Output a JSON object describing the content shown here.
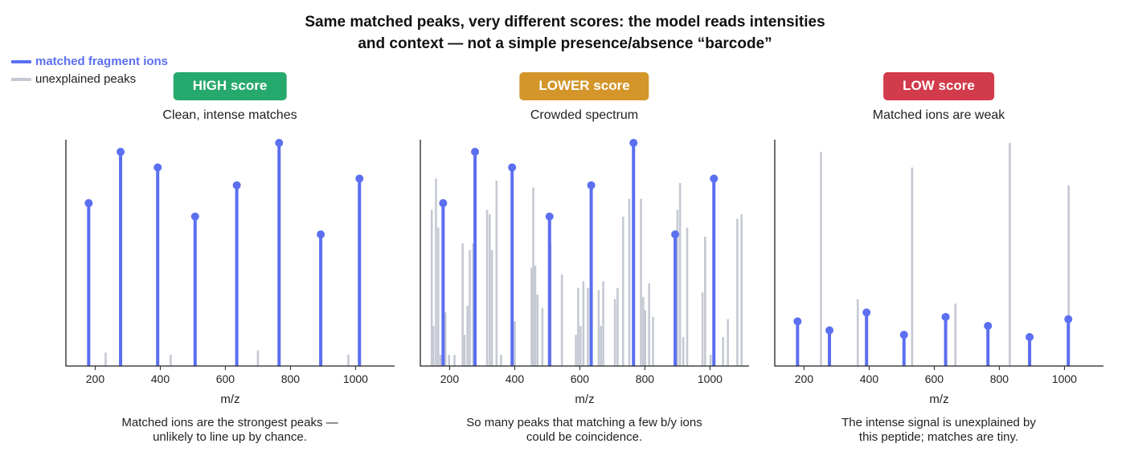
{
  "title": {
    "line1": "Same matched peaks, very different scores: the model reads intensities",
    "line2": "and context — not a simple presence/absence “barcode”"
  },
  "legend": {
    "matched_label": "matched fragment ions",
    "unexplained_label": "unexplained peaks"
  },
  "colors": {
    "matched": "#5b6ff0",
    "unexplained": "#c5c9d3",
    "high": "#26a96c",
    "lower": "#d4962a",
    "low": "#d23b4b",
    "axis": "#222222"
  },
  "chart_data": [
    {
      "type": "bar",
      "badge": "HIGH score",
      "badge_color": "#26a96c",
      "subtitle": "Clean, intense matches",
      "caption_line1": "Matched ions are the strongest peaks —",
      "caption_line2": "unlikely to line up by chance.",
      "xlabel": "m/z",
      "xlim": [
        110,
        1120
      ],
      "ylim": [
        0,
        1.0
      ],
      "xticks": [
        200,
        400,
        600,
        800,
        1000
      ],
      "matched": {
        "name": "matched fragment ions",
        "x": [
          180,
          278,
          392,
          507,
          635,
          765,
          893,
          1012
        ],
        "y": [
          0.73,
          0.96,
          0.89,
          0.67,
          0.81,
          1.0,
          0.59,
          0.84
        ]
      },
      "unexplained": {
        "name": "unexplained peaks",
        "x": [
          232,
          432,
          700,
          978
        ],
        "y": [
          0.06,
          0.05,
          0.07,
          0.05
        ]
      }
    },
    {
      "type": "bar",
      "badge": "LOWER score",
      "badge_color": "#d4962a",
      "subtitle": "Crowded spectrum",
      "caption_line1": "So many peaks that matching a few b/y ions",
      "caption_line2": "could be coincidence.",
      "xlabel": "m/z",
      "xlim": [
        110,
        1120
      ],
      "ylim": [
        0,
        1.0
      ],
      "xticks": [
        200,
        400,
        600,
        800,
        1000
      ],
      "matched": {
        "name": "matched fragment ions",
        "x": [
          180,
          278,
          392,
          507,
          635,
          765,
          893,
          1012
        ],
        "y": [
          0.73,
          0.96,
          0.89,
          0.67,
          0.81,
          1.0,
          0.59,
          0.84
        ]
      },
      "unexplained": {
        "name": "unexplained peaks",
        "x": [
          145,
          150,
          158,
          165,
          172,
          187,
          198,
          215,
          240,
          246,
          255,
          262,
          272,
          315,
          323,
          330,
          344,
          358,
          400,
          452,
          457,
          463,
          470,
          485,
          510,
          545,
          588,
          595,
          602,
          611,
          625,
          658,
          665,
          672,
          708,
          716,
          733,
          752,
          788,
          795,
          801,
          813,
          825,
          900,
          908,
          918,
          930,
          977,
          985,
          1002,
          1040,
          1055,
          1084,
          1097
        ],
        "y": [
          0.7,
          0.18,
          0.84,
          0.62,
          0.05,
          0.24,
          0.05,
          0.05,
          0.55,
          0.14,
          0.27,
          0.52,
          0.55,
          0.7,
          0.68,
          0.52,
          0.83,
          0.05,
          0.2,
          0.44,
          0.8,
          0.45,
          0.32,
          0.26,
          0.55,
          0.41,
          0.14,
          0.35,
          0.18,
          0.38,
          0.35,
          0.34,
          0.18,
          0.38,
          0.3,
          0.35,
          0.67,
          0.75,
          0.75,
          0.31,
          0.25,
          0.37,
          0.22,
          0.7,
          0.82,
          0.13,
          0.62,
          0.33,
          0.58,
          0.05,
          0.13,
          0.21,
          0.66,
          0.68
        ]
      }
    },
    {
      "type": "bar",
      "badge": "LOW score",
      "badge_color": "#d23b4b",
      "subtitle": "Matched ions are weak",
      "caption_line1": "The intense signal is unexplained by",
      "caption_line2": "this peptide; matches are tiny.",
      "xlabel": "m/z",
      "xlim": [
        110,
        1120
      ],
      "ylim": [
        0,
        1.0
      ],
      "xticks": [
        200,
        400,
        600,
        800,
        1000
      ],
      "matched": {
        "name": "matched fragment ions",
        "x": [
          180,
          278,
          392,
          507,
          635,
          765,
          893,
          1012
        ],
        "y": [
          0.2,
          0.16,
          0.24,
          0.14,
          0.22,
          0.18,
          0.13,
          0.21
        ]
      },
      "unexplained": {
        "name": "unexplained peaks",
        "x": [
          252,
          365,
          532,
          665,
          832,
          1013
        ],
        "y": [
          0.96,
          0.3,
          0.89,
          0.28,
          1.0,
          0.81
        ]
      }
    }
  ]
}
